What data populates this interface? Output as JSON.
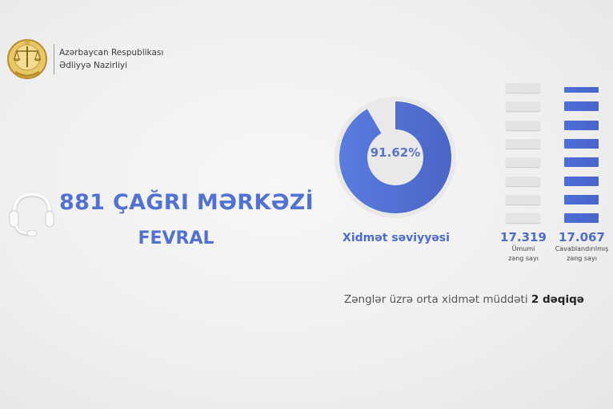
{
  "header": {
    "org_line1": "Azərbaycan Respublikası",
    "org_line2": "Ədliyyə Nazirliyi",
    "logo_icon": "scales-of-justice-emblem-icon"
  },
  "main": {
    "title": "881 ÇAĞRI MƏRKƏZİ",
    "month": "FEVRAL",
    "title_icon": "headset-icon"
  },
  "colors": {
    "accent": "#5272d3",
    "bar_gray": "#e4e4e4",
    "ring_bg": "#e8e8e8"
  },
  "chart_data": [
    {
      "type": "pie",
      "variant": "donut",
      "value_percent": 91.62,
      "center_label": "91.62%",
      "label": "Xidmət səviyyəsi"
    },
    {
      "type": "bar",
      "categories": [
        "Ümumi zəng sayı",
        "Cavablandırılmış zəng sayı"
      ],
      "values": [
        17319,
        17067
      ],
      "value_labels": [
        "17.319",
        "17.067"
      ],
      "caption_lines": [
        [
          "Ümumi",
          "zəng sayı"
        ],
        [
          "Cavablandırılmış",
          "zəng sayı"
        ]
      ]
    }
  ],
  "footer": {
    "avg_text": "Zənglər üzrə orta xidmət müddəti",
    "avg_value": "2 dəqiqə"
  }
}
